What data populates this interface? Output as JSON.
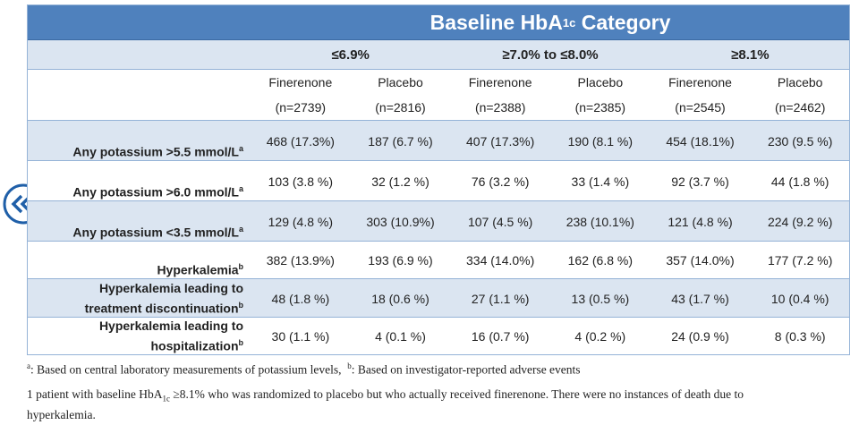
{
  "header": {
    "before": "Baseline HbA",
    "sub": "1c",
    "after": " Category"
  },
  "groups": [
    "≤6.9%",
    "≥7.0% to ≤8.0%",
    "≥8.1%"
  ],
  "columns": [
    {
      "name": "Finerenone",
      "n": "(n=2739)"
    },
    {
      "name": "Placebo",
      "n": "(n=2816)"
    },
    {
      "name": "Finerenone",
      "n": "(n=2388)"
    },
    {
      "name": "Placebo",
      "n": "(n=2385)"
    },
    {
      "name": "Finerenone",
      "n": "(n=2545)"
    },
    {
      "name": "Placebo",
      "n": "(n=2462)"
    }
  ],
  "rows": [
    {
      "label": [
        "Any potassium >5.5 mmol/L"
      ],
      "sup": "a",
      "cells": [
        "468 (17.3%)",
        "187 (6.7 %)",
        "407 (17.3%)",
        "190 (8.1 %)",
        "454 (18.1%)",
        "230 (9.5 %)"
      ]
    },
    {
      "label": [
        "Any potassium >6.0 mmol/L"
      ],
      "sup": "a",
      "cells": [
        "103 (3.8 %)",
        "32 (1.2 %)",
        "76 (3.2 %)",
        "33 (1.4 %)",
        "92 (3.7 %)",
        "44 (1.8 %)"
      ]
    },
    {
      "label": [
        "Any potassium <3.5 mmol/L"
      ],
      "sup": "a",
      "cells": [
        "129 (4.8 %)",
        "303 (10.9%)",
        "107 (4.5 %)",
        "238 (10.1%)",
        "121 (4.8 %)",
        "224 (9.2 %)"
      ]
    },
    {
      "label": [
        "Hyperkalemia"
      ],
      "sup": "b",
      "cells": [
        "382 (13.9%)",
        "193 (6.9 %)",
        "334 (14.0%)",
        "162 (6.8 %)",
        "357 (14.0%)",
        "177 (7.2 %)"
      ]
    },
    {
      "label": [
        "Hyperkalemia leading to",
        "treatment discontinuation"
      ],
      "sup": "b",
      "cells": [
        "48 (1.8 %)",
        "18 (0.6 %)",
        "27 (1.1 %)",
        "13 (0.5 %)",
        "43 (1.7 %)",
        "10 (0.4 %)"
      ]
    },
    {
      "label": [
        "Hyperkalemia leading to",
        "hospitalization"
      ],
      "sup": "b",
      "cells": [
        "30 (1.1 %)",
        "4 (0.1 %)",
        "16 (0.7 %)",
        "4 (0.2 %)",
        "24 (0.9 %)",
        "8 (0.3 %)"
      ]
    }
  ],
  "footnotes": [
    {
      "a_mark": "a",
      "a_text": ": Based on central laboratory measurements of potassium levels,",
      "b_mark": "b",
      "b_text": ": Based on investigator-reported adverse events"
    },
    {
      "before": "1 patient with baseline HbA",
      "sub": "1c",
      "after": " ≥8.1% who was randomized to placebo but who actually received finerenone. There were no instances of death due to hyperkalemia."
    }
  ]
}
